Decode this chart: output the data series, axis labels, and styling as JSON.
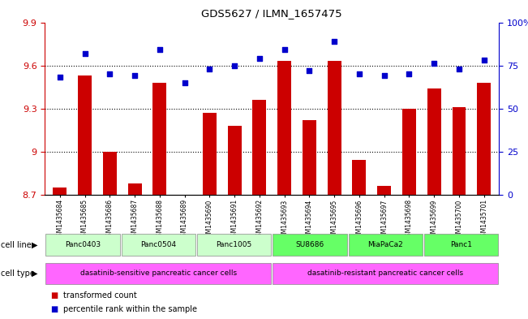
{
  "title": "GDS5627 / ILMN_1657475",
  "samples": [
    "GSM1435684",
    "GSM1435685",
    "GSM1435686",
    "GSM1435687",
    "GSM1435688",
    "GSM1435689",
    "GSM1435690",
    "GSM1435691",
    "GSM1435692",
    "GSM1435693",
    "GSM1435694",
    "GSM1435695",
    "GSM1435696",
    "GSM1435697",
    "GSM1435698",
    "GSM1435699",
    "GSM1435700",
    "GSM1435701"
  ],
  "bar_values": [
    8.75,
    9.53,
    9.0,
    8.78,
    9.48,
    8.7,
    9.27,
    9.18,
    9.36,
    9.63,
    9.22,
    9.63,
    8.94,
    8.76,
    9.3,
    9.44,
    9.31,
    9.48
  ],
  "percentile_values": [
    68,
    82,
    70,
    69,
    84,
    65,
    73,
    75,
    79,
    84,
    72,
    89,
    70,
    69,
    70,
    76,
    73,
    78
  ],
  "ylim_left": [
    8.7,
    9.9
  ],
  "ylim_right": [
    0,
    100
  ],
  "yticks_left": [
    8.7,
    9.0,
    9.3,
    9.6,
    9.9
  ],
  "yticks_right": [
    0,
    25,
    50,
    75,
    100
  ],
  "cell_lines": [
    {
      "label": "Panc0403",
      "start": 0,
      "end": 2,
      "color": "#ccffcc"
    },
    {
      "label": "Panc0504",
      "start": 3,
      "end": 5,
      "color": "#ccffcc"
    },
    {
      "label": "Panc1005",
      "start": 6,
      "end": 8,
      "color": "#ccffcc"
    },
    {
      "label": "SU8686",
      "start": 9,
      "end": 11,
      "color": "#66ff66"
    },
    {
      "label": "MiaPaCa2",
      "start": 12,
      "end": 14,
      "color": "#66ff66"
    },
    {
      "label": "Panc1",
      "start": 15,
      "end": 17,
      "color": "#66ff66"
    }
  ],
  "cell_types": [
    {
      "label": "dasatinib-sensitive pancreatic cancer cells",
      "start": 0,
      "end": 8,
      "color": "#ff66ff"
    },
    {
      "label": "dasatinib-resistant pancreatic cancer cells",
      "start": 9,
      "end": 17,
      "color": "#ff66ff"
    }
  ],
  "bar_color": "#cc0000",
  "percentile_color": "#0000cc",
  "background_color": "#ffffff"
}
